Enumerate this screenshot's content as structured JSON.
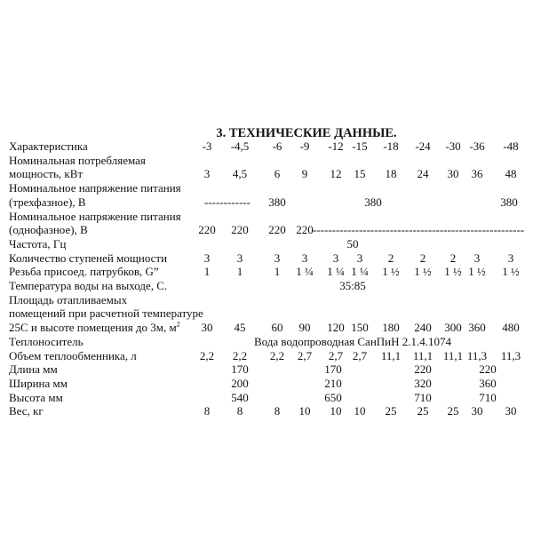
{
  "title": "3. ТЕХНИЧЕСКИЕ  ДАННЫЕ.",
  "rows": [
    {
      "label": [
        "Характеристика"
      ],
      "values": [
        "-3",
        "-4,5",
        "-6",
        "-9",
        "-12",
        "-15",
        "-18",
        "-24",
        "-30",
        "-36",
        "-48"
      ]
    },
    {
      "label": [
        "Номинальная потребляемая",
        "мощность, кВт"
      ],
      "values": [
        "3",
        "4,5",
        "6",
        "9",
        "12",
        "15",
        "18",
        "24",
        "30",
        "36",
        "48"
      ]
    },
    {
      "label": [
        "Номинальное напряжение питания",
        "(трехфазное), В"
      ],
      "dashes": "------------",
      "groups": [
        "380",
        "380",
        "380"
      ]
    },
    {
      "label": [
        "Номинальное напряжение питания",
        "(однофазное), В"
      ],
      "values": [
        "220",
        "220",
        "220",
        "220"
      ],
      "dashes": "----------------------------------------------------------------------"
    },
    {
      "label": [
        "Частота, Гц"
      ],
      "span": "50"
    },
    {
      "label": [
        "Количество ступеней мощности"
      ],
      "values": [
        "3",
        "3",
        "3",
        "3",
        "3",
        "3",
        "2",
        "2",
        "2",
        "3",
        "3"
      ]
    },
    {
      "label": [
        "Резьба присоед. патрубков, G”"
      ],
      "values": [
        "1",
        "1",
        "1",
        "1 ¼",
        "1 ¼",
        "1 ¼",
        "1 ½",
        "1 ½",
        "1 ½",
        "1 ½",
        "1 ½"
      ]
    },
    {
      "label": [
        "Температура воды на выходе, С."
      ],
      "span": "35:85"
    },
    {
      "label": [
        "Площадь отапливаемых",
        "помещений при расчетной температуре",
        "25С и высоте помещения до 3м, м²"
      ],
      "values": [
        "30",
        "45",
        "60",
        "90",
        "120",
        "150",
        "180",
        "240",
        "300",
        "360",
        "480"
      ]
    },
    {
      "label": [
        "Теплоноситель"
      ],
      "span": "Вода водопроводная СанПиН 2.1.4.1074"
    },
    {
      "label": [
        "Объем теплообменника, л"
      ],
      "values": [
        "2,2",
        "2,2",
        "2,2",
        "2,7",
        "2,7",
        "2,7",
        "11,1",
        "11,1",
        "11,1",
        "11,3",
        "11,3"
      ]
    },
    {
      "label": [
        "Длина мм"
      ],
      "groups": [
        "170",
        "170",
        "220",
        "220"
      ]
    },
    {
      "label": [
        "Ширина мм"
      ],
      "groups": [
        "200",
        "210",
        "320",
        "360"
      ]
    },
    {
      "label": [
        "Высота мм"
      ],
      "groups": [
        "540",
        "650",
        "710",
        "710"
      ]
    },
    {
      "label": [
        "Вес, кг"
      ],
      "values": [
        "8",
        "8",
        "8",
        "10",
        "10",
        "10",
        "25",
        "25",
        "25",
        "30",
        "30"
      ]
    }
  ]
}
